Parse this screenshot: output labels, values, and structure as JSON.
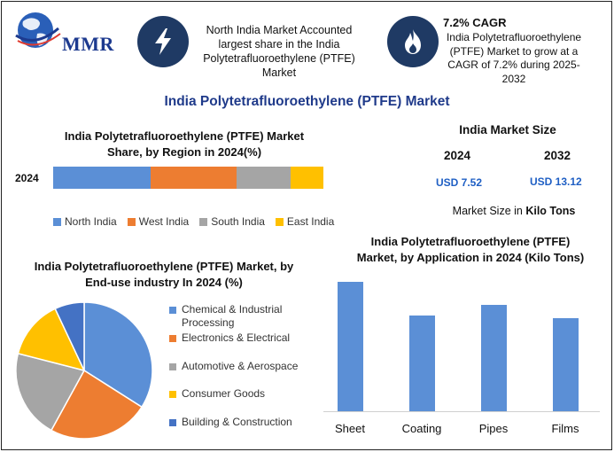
{
  "brand": {
    "logo_text": "MMR"
  },
  "colors": {
    "north": "#5b8fd6",
    "west": "#ed7d31",
    "south": "#a5a5a5",
    "east": "#ffc000",
    "building": "#4472c4",
    "navy": "#1f3a64",
    "title_blue": "#1f3a8a",
    "value_blue": "#1f5fc4"
  },
  "header": {
    "icon_left": "lightning-icon",
    "left_text": "North India Market Accounted largest share in the India Polytetrafluoroethylene (PTFE) Market",
    "icon_right": "flame-icon",
    "cagr_title": "7.2% CAGR",
    "cagr_text": "India Polytetrafluoroethylene (PTFE) Market to grow at a CAGR of 7.2% during 2025-2032"
  },
  "main_title": "India Polytetrafluoroethylene (PTFE) Market",
  "market_size": {
    "title": "India Market Size",
    "year_a": "2024",
    "year_b": "2032",
    "value_a": "USD 7.52",
    "value_b": "USD 13.12",
    "note_prefix": "Market Size in ",
    "note_bold": "Kilo Tons"
  },
  "chart_data": [
    {
      "type": "bar",
      "orientation": "horizontal-stacked",
      "title": "India Polytetrafluoroethylene (PTFE) Market Share, by Region in 2024(%)",
      "categories": [
        "2024"
      ],
      "series": [
        {
          "name": "North India",
          "values": [
            36
          ]
        },
        {
          "name": "West India",
          "values": [
            32
          ]
        },
        {
          "name": "South India",
          "values": [
            20
          ]
        },
        {
          "name": "East India",
          "values": [
            12
          ]
        }
      ],
      "legend": "bottom"
    },
    {
      "type": "pie",
      "title": "India Polytetrafluoroethylene (PTFE) Market, by End-use industry In 2024 (%)",
      "labels": [
        "Chemical & Industrial Processing",
        "Electronics & Electrical",
        "Automotive & Aerospace",
        "Consumer Goods",
        "Building & Construction"
      ],
      "values": [
        34,
        24,
        21,
        14,
        7
      ],
      "legend": "right"
    },
    {
      "type": "bar",
      "title": "India Polytetrafluoroethylene (PTFE) Market, by Application in 2024 (Kilo Tons)",
      "categories": [
        "Sheet",
        "Coating",
        "Pipes",
        "Films"
      ],
      "values": [
        1.0,
        0.74,
        0.82,
        0.72
      ],
      "ylim": [
        0,
        1.0
      ],
      "grid": false
    }
  ]
}
